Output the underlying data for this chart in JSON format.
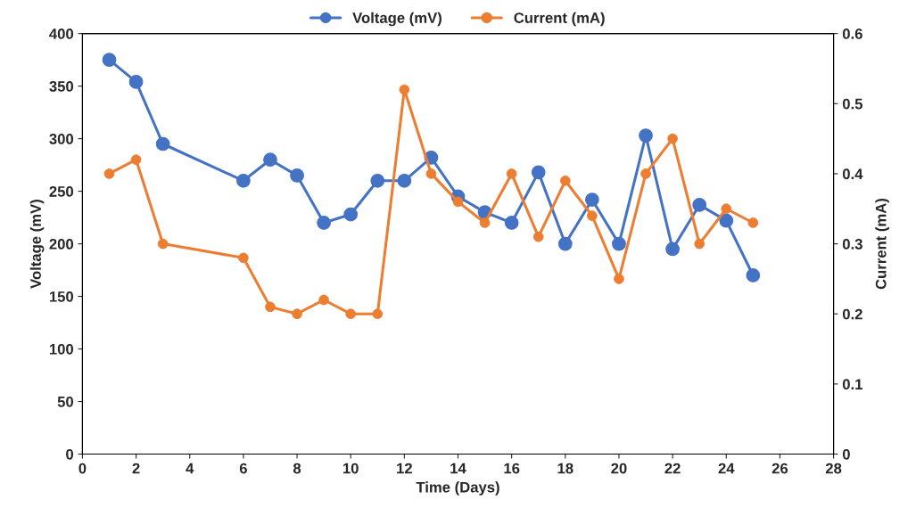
{
  "chart_data": {
    "type": "line",
    "xlabel": "Time (Days)",
    "ylabel": "Voltage (mV)",
    "y2label": "Current (mA)",
    "x": [
      1,
      2,
      3,
      6,
      7,
      8,
      9,
      10,
      11,
      12,
      13,
      14,
      15,
      16,
      17,
      18,
      19,
      20,
      21,
      22,
      23,
      24,
      25
    ],
    "series": [
      {
        "name": "Voltage (mV)",
        "color": "#4472c4",
        "values": [
          375,
          354,
          295,
          260,
          280,
          265,
          220,
          228,
          260,
          260,
          282,
          245,
          230,
          220,
          268,
          200,
          242,
          200,
          303,
          195,
          237,
          222,
          170
        ]
      },
      {
        "name": "Current (mA)",
        "color": "#ed7d31",
        "axis": "y2",
        "values": [
          0.4,
          0.42,
          0.3,
          0.28,
          0.21,
          0.2,
          0.22,
          0.2,
          0.2,
          0.52,
          0.4,
          0.36,
          0.33,
          0.4,
          0.31,
          0.39,
          0.34,
          0.25,
          0.4,
          0.45,
          0.3,
          0.35,
          0.33
        ]
      }
    ],
    "xlim": [
      0,
      28
    ],
    "xticks": [
      0,
      2,
      4,
      6,
      8,
      10,
      12,
      14,
      16,
      18,
      20,
      22,
      24,
      26,
      28
    ],
    "ylim": [
      0,
      400
    ],
    "yticks": [
      0,
      50,
      100,
      150,
      200,
      250,
      300,
      350,
      400
    ],
    "y2lim": [
      0,
      0.6
    ],
    "y2ticks": [
      {
        "value": 0,
        "label": "0"
      },
      {
        "value": 0.1,
        "label": "0.1"
      },
      {
        "value": 0.2,
        "label": "0.2"
      },
      {
        "value": 0.3,
        "label": "0.3"
      },
      {
        "value": 0.4,
        "label": "0.4"
      },
      {
        "value": 0.5,
        "label": "0.5"
      },
      {
        "value": 0.6,
        "label": "0.6"
      }
    ],
    "marker": "circle",
    "line_style": "solid",
    "grid": false,
    "legend": "top"
  }
}
